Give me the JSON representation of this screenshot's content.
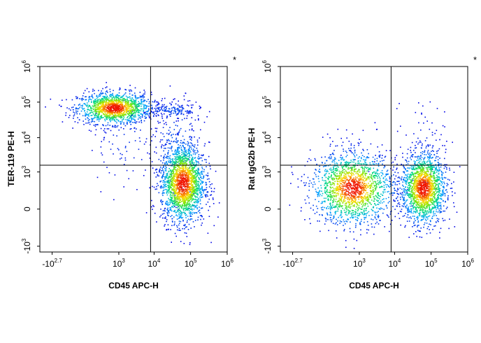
{
  "chart_data": [
    {
      "type": "scatter",
      "subtype": "flow-cytometry-density-dot-plot",
      "xlabel": "CD45 APC-H",
      "ylabel": "TER-119 PE-H",
      "corner_mark": "*",
      "x_scale": "biexponential",
      "y_scale": "biexponential",
      "x_ticks": [
        {
          "base": "-10",
          "exp": "2.7",
          "value": -501
        },
        {
          "base": "10",
          "exp": "3",
          "value": 1000
        },
        {
          "base": "10",
          "exp": "4",
          "value": 10000
        },
        {
          "base": "10",
          "exp": "5",
          "value": 100000
        },
        {
          "base": "10",
          "exp": "6",
          "value": 1000000
        }
      ],
      "y_ticks": [
        {
          "base": "-10",
          "exp": "3",
          "value": -1000
        },
        {
          "base": "0",
          "exp": "",
          "value": 0
        },
        {
          "base": "10",
          "exp": "3",
          "value": 1000
        },
        {
          "base": "10",
          "exp": "4",
          "value": 10000
        },
        {
          "base": "10",
          "exp": "5",
          "value": 100000
        },
        {
          "base": "10",
          "exp": "6",
          "value": 1000000
        }
      ],
      "gates": {
        "x": 8000,
        "y": 1600
      },
      "grid": false,
      "populations": [
        {
          "center": [
            700,
            70000
          ],
          "spread": [
            0.5,
            0.22
          ],
          "count": 1400
        },
        {
          "center": [
            60000,
            450
          ],
          "spread": [
            0.3,
            0.55
          ],
          "count": 1900
        },
        {
          "center": [
            30000,
            60000
          ],
          "spread": [
            0.4,
            0.12
          ],
          "count": 160
        },
        {
          "center": [
            40000,
            3000
          ],
          "spread": [
            0.35,
            0.8
          ],
          "count": 220
        },
        {
          "center": [
            1500,
            8000
          ],
          "spread": [
            0.5,
            0.6
          ],
          "count": 90
        }
      ]
    },
    {
      "type": "scatter",
      "subtype": "flow-cytometry-density-dot-plot",
      "xlabel": "CD45 APC-H",
      "ylabel": "Rat IgG2b PE-H",
      "corner_mark": "*",
      "x_scale": "biexponential",
      "y_scale": "biexponential",
      "x_ticks": [
        {
          "base": "-10",
          "exp": "2.7",
          "value": -501
        },
        {
          "base": "10",
          "exp": "3",
          "value": 1000
        },
        {
          "base": "10",
          "exp": "4",
          "value": 10000
        },
        {
          "base": "10",
          "exp": "5",
          "value": 100000
        },
        {
          "base": "10",
          "exp": "6",
          "value": 1000000
        }
      ],
      "y_ticks": [
        {
          "base": "-10",
          "exp": "3",
          "value": -1000
        },
        {
          "base": "0",
          "exp": "",
          "value": 0
        },
        {
          "base": "10",
          "exp": "3",
          "value": 1000
        },
        {
          "base": "10",
          "exp": "4",
          "value": 10000
        },
        {
          "base": "10",
          "exp": "5",
          "value": 100000
        },
        {
          "base": "10",
          "exp": "6",
          "value": 1000000
        }
      ],
      "gates": {
        "x": 8000,
        "y": 1600
      },
      "grid": false,
      "populations": [
        {
          "center": [
            600,
            300
          ],
          "spread": [
            0.55,
            0.5
          ],
          "count": 1700
        },
        {
          "center": [
            60000,
            300
          ],
          "spread": [
            0.3,
            0.5
          ],
          "count": 1700
        },
        {
          "center": [
            60000,
            8000
          ],
          "spread": [
            0.3,
            0.6
          ],
          "count": 60
        },
        {
          "center": [
            2000,
            4000
          ],
          "spread": [
            0.5,
            0.5
          ],
          "count": 25
        }
      ]
    }
  ]
}
